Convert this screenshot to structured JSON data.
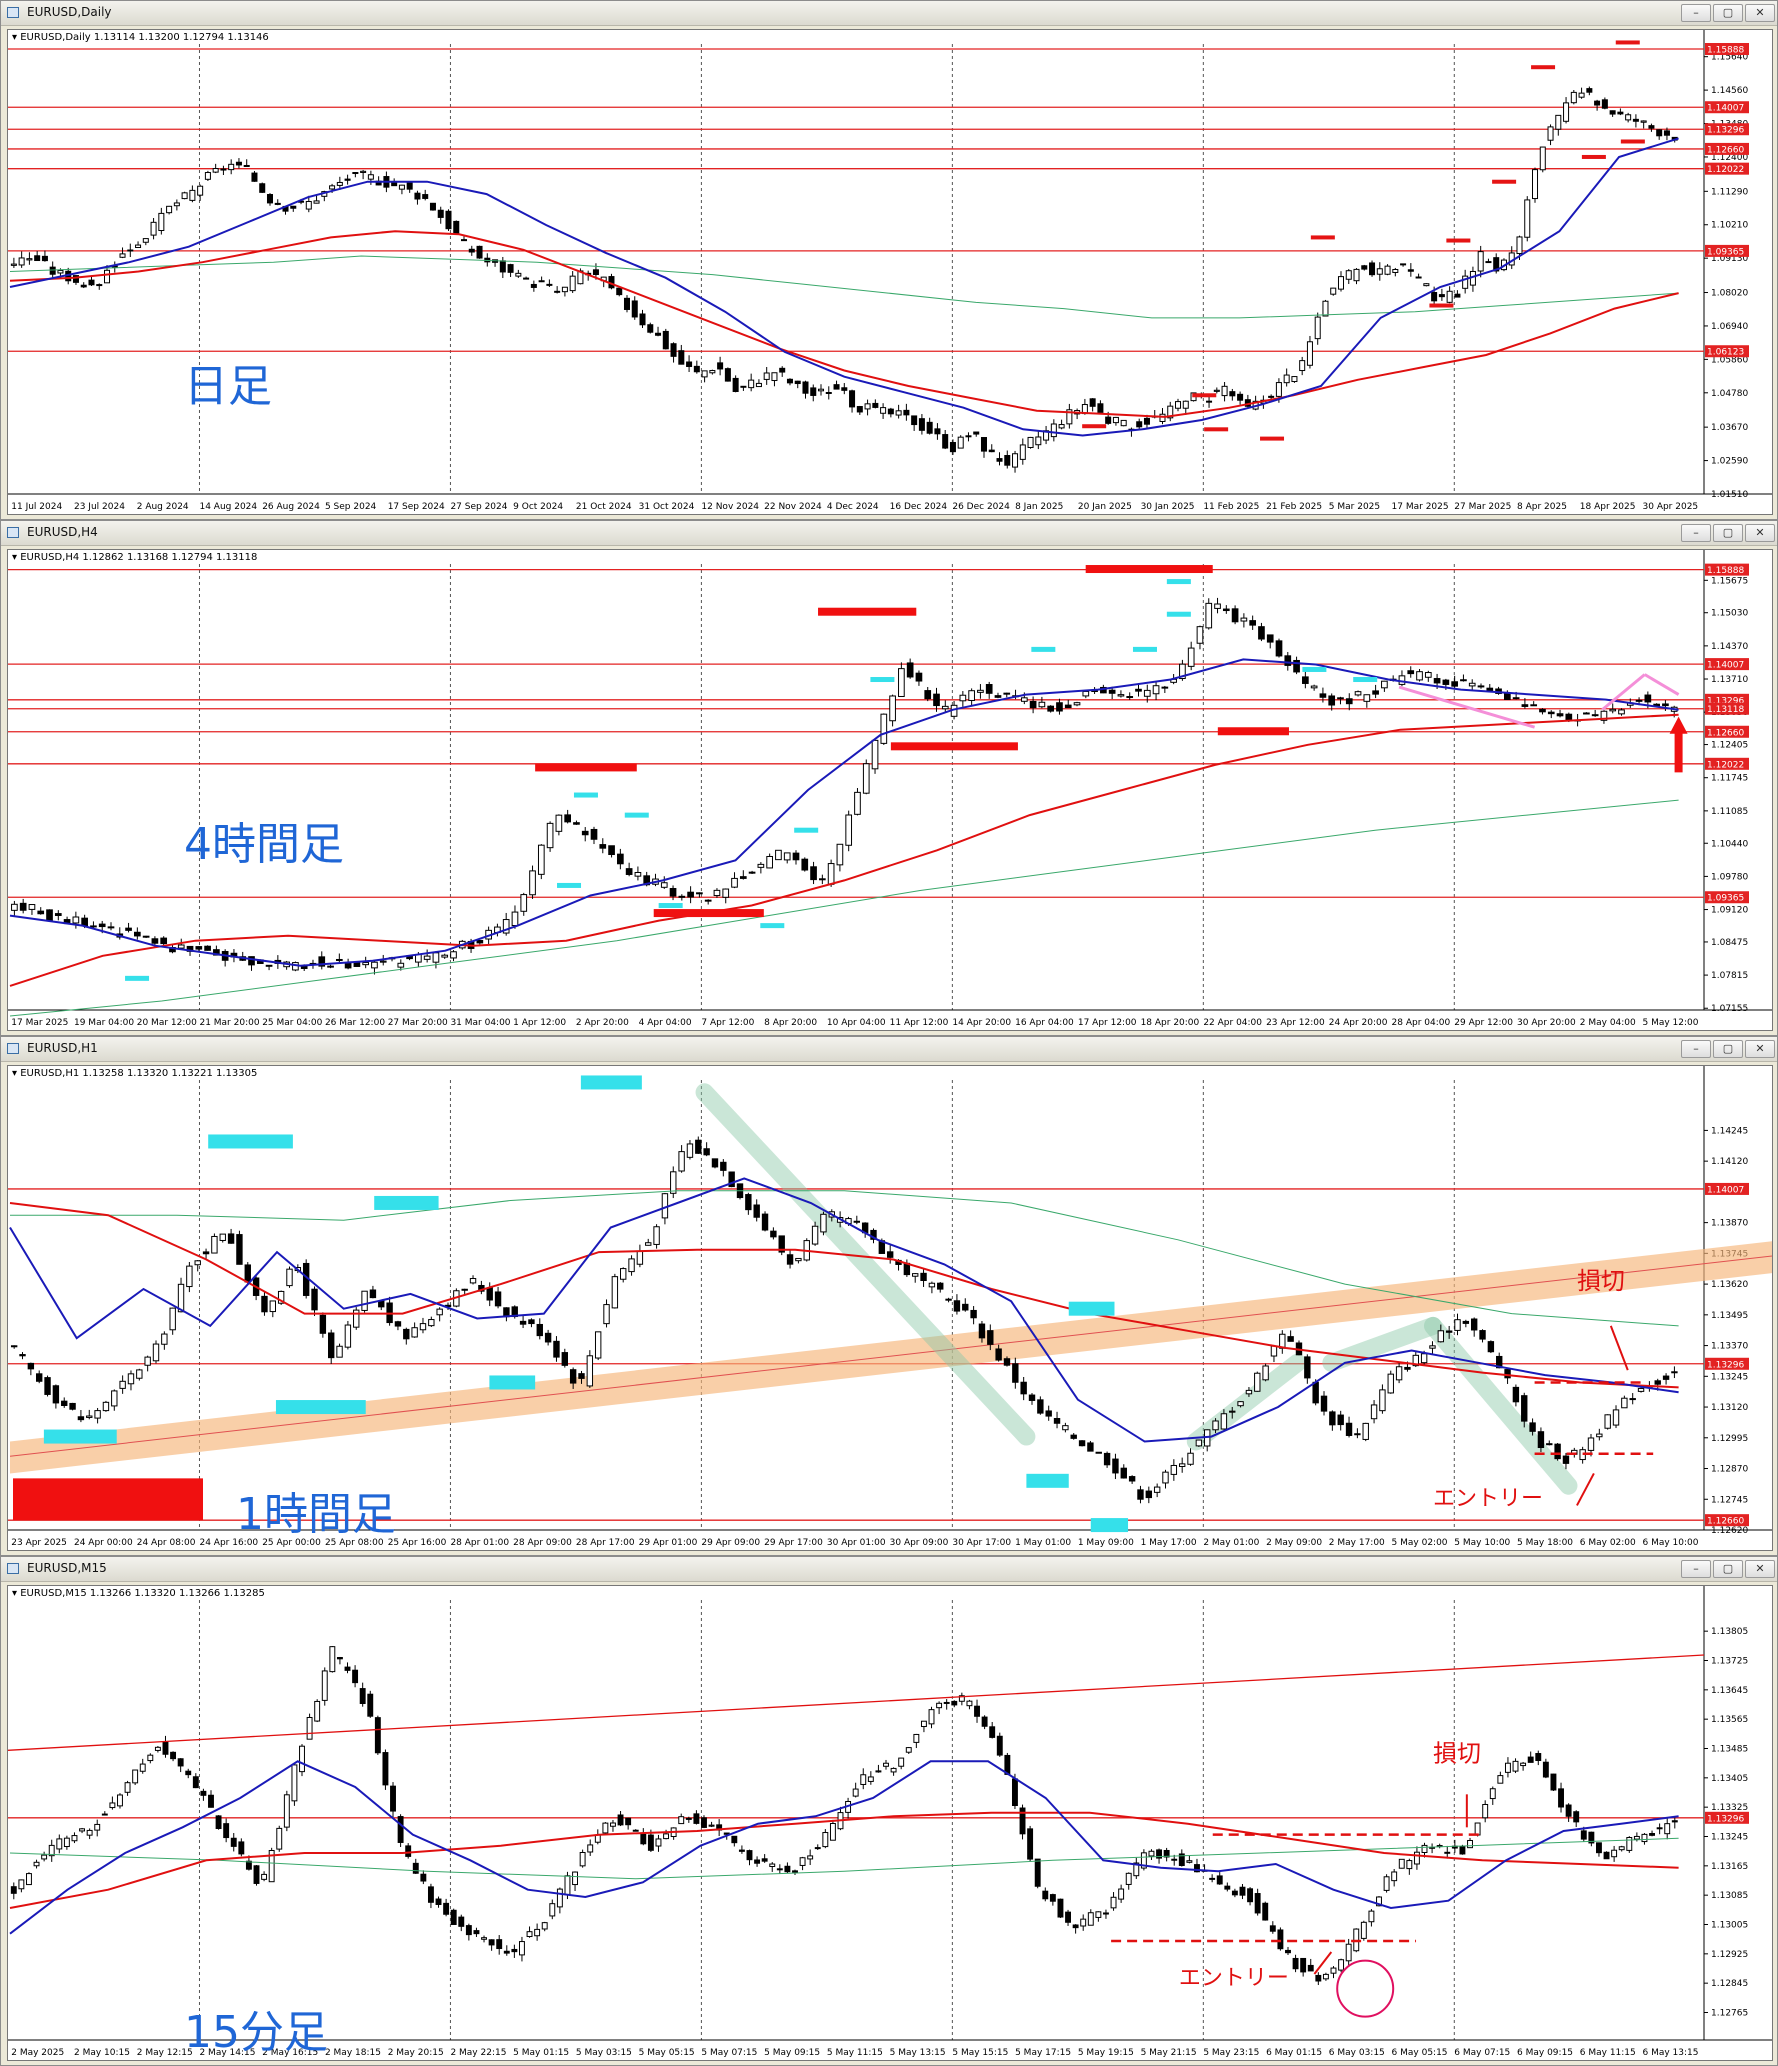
{
  "panels": [
    {
      "id": "daily",
      "title": "EURUSD,Daily",
      "info": "EURUSD,Daily  1.13114 1.13200 1.12794 1.13146",
      "label": "日足",
      "price_min": 1.0151,
      "price_max": 1.1605,
      "ticks": [
        "1.15640",
        "1.14560",
        "1.13480",
        "1.12400",
        "1.11290",
        "1.10210",
        "1.09130",
        "1.08020",
        "1.06940",
        "1.05860",
        "1.04780",
        "1.03670",
        "1.02590",
        "1.01510"
      ],
      "levels": [
        {
          "price": 1.15888,
          "text": "1.15888"
        },
        {
          "price": 1.14007,
          "text": "1.14007"
        },
        {
          "price": 1.13296,
          "text": "1.13296"
        },
        {
          "price": 1.1266,
          "text": "1.12660"
        },
        {
          "price": 1.12022,
          "text": "1.12022"
        },
        {
          "price": 1.09365,
          "text": "1.09365"
        },
        {
          "price": 1.06123,
          "text": "1.06123"
        }
      ],
      "dates": [
        "11 Jul 2024",
        "23 Jul 2024",
        "2 Aug 2024",
        "14 Aug 2024",
        "26 Aug 2024",
        "5 Sep 2024",
        "17 Sep 2024",
        "27 Sep 2024",
        "9 Oct 2024",
        "21 Oct 2024",
        "31 Oct 2024",
        "12 Nov 2024",
        "22 Nov 2024",
        "4 Dec 2024",
        "16 Dec 2024",
        "26 Dec 2024",
        "8 Jan 2025",
        "20 Jan 2025",
        "30 Jan 2025",
        "11 Feb 2025",
        "21 Feb 2025",
        "5 Mar 2025",
        "17 Mar 2025",
        "27 Mar 2025",
        "8 Apr 2025",
        "18 Apr 2025",
        "30 Apr 2025"
      ],
      "close_path": [
        1.09,
        1.092,
        1.087,
        1.085,
        1.081,
        1.089,
        1.095,
        1.1,
        1.108,
        1.112,
        1.118,
        1.122,
        1.119,
        1.111,
        1.108,
        1.109,
        1.113,
        1.117,
        1.118,
        1.116,
        1.114,
        1.111,
        1.104,
        1.096,
        1.091,
        1.088,
        1.084,
        1.083,
        1.08,
        1.087,
        1.085,
        1.078,
        1.072,
        1.066,
        1.058,
        1.054,
        1.057,
        1.048,
        1.052,
        1.055,
        1.05,
        1.047,
        1.05,
        1.044,
        1.042,
        1.041,
        1.039,
        1.035,
        1.03,
        1.035,
        1.028,
        1.025,
        1.032,
        1.036,
        1.041,
        1.045,
        1.039,
        1.037,
        1.039,
        1.041,
        1.047,
        1.046,
        1.05,
        1.042,
        1.046,
        1.052,
        1.057,
        1.078,
        1.084,
        1.089,
        1.086,
        1.09,
        1.083,
        1.077,
        1.081,
        1.092,
        1.088,
        1.096,
        1.125,
        1.136,
        1.145,
        1.142,
        1.138,
        1.136,
        1.133,
        1.131
      ],
      "ma_blue": [
        1.082,
        1.086,
        1.09,
        1.095,
        1.103,
        1.111,
        1.116,
        1.116,
        1.112,
        1.102,
        1.093,
        1.085,
        1.074,
        1.061,
        1.053,
        1.048,
        1.043,
        1.036,
        1.034,
        1.036,
        1.039,
        1.044,
        1.05,
        1.072,
        1.082,
        1.088,
        1.1,
        1.124,
        1.13
      ],
      "ma_red": [
        1.084,
        1.085,
        1.087,
        1.09,
        1.094,
        1.098,
        1.1,
        1.099,
        1.094,
        1.086,
        1.078,
        1.07,
        1.062,
        1.055,
        1.05,
        1.046,
        1.042,
        1.041,
        1.04,
        1.043,
        1.047,
        1.052,
        1.056,
        1.06,
        1.067,
        1.075,
        1.08
      ],
      "ma_green": [
        1.087,
        1.088,
        1.089,
        1.09,
        1.092,
        1.091,
        1.09,
        1.088,
        1.086,
        1.083,
        1.08,
        1.077,
        1.075,
        1.072,
        1.072,
        1.073,
        1.074,
        1.076,
        1.078,
        1.08
      ],
      "red_dashes": [
        [
          0.64,
          1.037
        ],
        [
          0.705,
          1.047
        ],
        [
          0.712,
          1.036
        ],
        [
          0.745,
          1.033
        ],
        [
          0.775,
          1.098
        ],
        [
          0.845,
          1.076
        ],
        [
          0.855,
          1.097
        ],
        [
          0.882,
          1.116
        ],
        [
          0.905,
          1.153
        ],
        [
          0.935,
          1.124
        ],
        [
          0.955,
          1.161
        ],
        [
          0.958,
          1.129
        ]
      ]
    },
    {
      "id": "h4",
      "title": "EURUSD,H4",
      "info": "EURUSD,H4  1.12862 1.13168 1.12794 1.13118",
      "label": "4時間足",
      "price_min": 1.0712,
      "price_max": 1.16,
      "ticks": [
        "1.15675",
        "1.15030",
        "1.14370",
        "1.13710",
        "1.13050",
        "1.12405",
        "1.11745",
        "1.11085",
        "1.10440",
        "1.09780",
        "1.09120",
        "1.08475",
        "1.07815",
        "1.07155"
      ],
      "levels": [
        {
          "price": 1.15888,
          "text": "1.15888"
        },
        {
          "price": 1.14007,
          "text": "1.14007"
        },
        {
          "price": 1.13296,
          "text": "1.13296"
        },
        {
          "price": 1.13118,
          "text": "1.13118"
        },
        {
          "price": 1.1266,
          "text": "1.12660"
        },
        {
          "price": 1.12022,
          "text": "1.12022"
        },
        {
          "price": 1.09365,
          "text": "1.09365"
        }
      ],
      "dates": [
        "17 Mar 2025",
        "19 Mar 04:00",
        "20 Mar 12:00",
        "21 Mar 20:00",
        "25 Mar 04:00",
        "26 Mar 12:00",
        "27 Mar 20:00",
        "31 Mar 04:00",
        "1 Apr 12:00",
        "2 Apr 20:00",
        "4 Apr 04:00",
        "7 Apr 12:00",
        "8 Apr 20:00",
        "10 Apr 04:00",
        "11 Apr 12:00",
        "14 Apr 20:00",
        "16 Apr 04:00",
        "17 Apr 12:00",
        "18 Apr 20:00",
        "22 Apr 04:00",
        "23 Apr 12:00",
        "24 Apr 20:00",
        "28 Apr 04:00",
        "29 Apr 12:00",
        "30 Apr 20:00",
        "2 May 04:00",
        "5 May 12:00"
      ],
      "close_path": [
        1.092,
        1.09,
        1.088,
        1.086,
        1.084,
        1.083,
        1.081,
        1.08,
        1.081,
        1.08,
        1.081,
        1.082,
        1.085,
        1.09,
        1.11,
        1.105,
        1.098,
        1.095,
        1.093,
        1.099,
        1.103,
        1.096,
        1.118,
        1.14,
        1.13,
        1.135,
        1.133,
        1.131,
        1.135,
        1.134,
        1.136,
        1.152,
        1.148,
        1.14,
        1.132,
        1.134,
        1.138,
        1.137,
        1.135,
        1.132,
        1.129,
        1.13,
        1.133,
        1.131
      ],
      "ma_blue": [
        1.09,
        1.088,
        1.084,
        1.082,
        1.08,
        1.081,
        1.083,
        1.088,
        1.094,
        1.097,
        1.101,
        1.115,
        1.126,
        1.131,
        1.134,
        1.135,
        1.137,
        1.141,
        1.14,
        1.137,
        1.135,
        1.134,
        1.133,
        1.131
      ],
      "ma_red": [
        1.076,
        1.082,
        1.085,
        1.086,
        1.085,
        1.084,
        1.085,
        1.089,
        1.092,
        1.097,
        1.103,
        1.11,
        1.115,
        1.12,
        1.124,
        1.127,
        1.128,
        1.129,
        1.13
      ],
      "ma_green": [
        1.07,
        1.073,
        1.077,
        1.081,
        1.085,
        1.09,
        1.095,
        1.099,
        1.103,
        1.107,
        1.11,
        1.113
      ],
      "red_bars": [
        [
          0.31,
          0.37,
          1.1195
        ],
        [
          0.38,
          0.445,
          1.0905
        ],
        [
          0.477,
          0.535,
          1.1505
        ],
        [
          0.52,
          0.595,
          1.1237
        ],
        [
          0.635,
          0.71,
          1.159
        ],
        [
          0.713,
          0.755,
          1.1267
        ]
      ],
      "cyan_marks": [
        [
          0.33,
          1.096
        ],
        [
          0.34,
          1.114
        ],
        [
          0.37,
          1.11
        ],
        [
          0.39,
          1.092
        ],
        [
          0.45,
          1.088
        ],
        [
          0.47,
          1.107
        ],
        [
          0.515,
          1.137
        ],
        [
          0.61,
          1.143
        ],
        [
          0.67,
          1.143
        ],
        [
          0.69,
          1.1565
        ],
        [
          0.69,
          1.15
        ],
        [
          0.77,
          1.139
        ],
        [
          0.8,
          1.137
        ],
        [
          0.075,
          1.0775
        ]
      ]
    },
    {
      "id": "h1",
      "title": "EURUSD,H1",
      "info": "EURUSD,H1  1.13258 1.13320 1.13221 1.13305",
      "label": "1時間足",
      "annotation_stop": "損切",
      "annotation_entry": "エントリー",
      "price_min": 1.1262,
      "price_max": 1.1445,
      "ticks": [
        "1.14245",
        "1.14120",
        "1.13870",
        "1.13745",
        "1.13620",
        "1.13495",
        "1.13370",
        "1.13245",
        "1.13120",
        "1.12995",
        "1.12870",
        "1.12745",
        "1.12620"
      ],
      "levels": [
        {
          "price": 1.14007,
          "text": "1.14007"
        },
        {
          "price": 1.13296,
          "text": "1.13296"
        },
        {
          "price": 1.1266,
          "text": "1.12660"
        }
      ],
      "dates": [
        "23 Apr 2025",
        "24 Apr 00:00",
        "24 Apr 08:00",
        "24 Apr 16:00",
        "25 Apr 00:00",
        "25 Apr 08:00",
        "25 Apr 16:00",
        "28 Apr 01:00",
        "28 Apr 09:00",
        "28 Apr 17:00",
        "29 Apr 01:00",
        "29 Apr 09:00",
        "29 Apr 17:00",
        "30 Apr 01:00",
        "30 Apr 09:00",
        "30 Apr 17:00",
        "1 May 01:00",
        "1 May 09:00",
        "1 May 17:00",
        "2 May 01:00",
        "2 May 09:00",
        "2 May 17:00",
        "5 May 02:00",
        "5 May 10:00",
        "5 May 18:00",
        "6 May 02:00",
        "6 May 10:00"
      ],
      "close_path": [
        1.1335,
        1.1318,
        1.1306,
        1.132,
        1.1335,
        1.137,
        1.1385,
        1.135,
        1.137,
        1.133,
        1.136,
        1.134,
        1.1352,
        1.1363,
        1.135,
        1.1342,
        1.132,
        1.1365,
        1.138,
        1.142,
        1.141,
        1.139,
        1.137,
        1.139,
        1.1385,
        1.137,
        1.136,
        1.135,
        1.133,
        1.131,
        1.13,
        1.129,
        1.1275,
        1.129,
        1.1305,
        1.132,
        1.1345,
        1.131,
        1.13,
        1.1325,
        1.1335,
        1.135,
        1.133,
        1.13,
        1.129,
        1.1305,
        1.132,
        1.1326
      ],
      "ma_blue": [
        1.1385,
        1.134,
        1.136,
        1.1345,
        1.1375,
        1.1352,
        1.1358,
        1.1348,
        1.135,
        1.1385,
        1.1395,
        1.1405,
        1.1395,
        1.138,
        1.137,
        1.1355,
        1.1315,
        1.1298,
        1.13,
        1.1312,
        1.133,
        1.1335,
        1.133,
        1.1325,
        1.1322,
        1.1318
      ],
      "ma_red": [
        1.1395,
        1.139,
        1.1372,
        1.135,
        1.135,
        1.1362,
        1.1375,
        1.1376,
        1.1376,
        1.1372,
        1.136,
        1.135,
        1.1343,
        1.1336,
        1.1331,
        1.1326,
        1.1322,
        1.132
      ],
      "ma_green": [
        1.139,
        1.139,
        1.1388,
        1.1396,
        1.14,
        1.14,
        1.1395,
        1.138,
        1.1362,
        1.135,
        1.1345
      ],
      "cyan_rects": [
        [
          0.02,
          0.063,
          1.13
        ],
        [
          0.117,
          0.167,
          1.142
        ],
        [
          0.157,
          0.21,
          1.1312
        ],
        [
          0.215,
          0.253,
          1.1395
        ],
        [
          0.283,
          0.31,
          1.1322
        ],
        [
          0.337,
          0.373,
          1.1444
        ],
        [
          0.625,
          0.652,
          1.1352
        ],
        [
          0.6,
          0.625,
          1.1282
        ],
        [
          0.638,
          0.66,
          1.1264
        ]
      ]
    },
    {
      "id": "m15",
      "title": "EURUSD,M15",
      "info": "EURUSD,M15  1.13266 1.13320 1.13266 1.13285",
      "label": "15分足",
      "annotation_stop": "損切",
      "annotation_entry": "エントリー",
      "price_min": 1.1269,
      "price_max": 1.1389,
      "ticks": [
        "1.13805",
        "1.13725",
        "1.13645",
        "1.13565",
        "1.13485",
        "1.13405",
        "1.13325",
        "1.13245",
        "1.13165",
        "1.13085",
        "1.13005",
        "1.12925",
        "1.12845",
        "1.12765"
      ],
      "levels": [
        {
          "price": 1.13296,
          "text": "1.13296"
        }
      ],
      "dates": [
        "2 May 2025",
        "2 May 10:15",
        "2 May 12:15",
        "2 May 14:15",
        "2 May 16:15",
        "2 May 18:15",
        "2 May 20:15",
        "2 May 22:15",
        "5 May 01:15",
        "5 May 03:15",
        "5 May 05:15",
        "5 May 07:15",
        "5 May 09:15",
        "5 May 11:15",
        "5 May 13:15",
        "5 May 15:15",
        "5 May 17:15",
        "5 May 19:15",
        "5 May 21:15",
        "5 May 23:15",
        "6 May 01:15",
        "6 May 03:15",
        "6 May 05:15",
        "6 May 07:15",
        "6 May 09:15",
        "6 May 11:15",
        "6 May 13:15"
      ],
      "close_path": [
        1.131,
        1.1322,
        1.1326,
        1.1335,
        1.135,
        1.134,
        1.1325,
        1.131,
        1.1345,
        1.1375,
        1.136,
        1.132,
        1.1305,
        1.1298,
        1.1292,
        1.1302,
        1.1318,
        1.133,
        1.1322,
        1.133,
        1.1325,
        1.1318,
        1.1315,
        1.1325,
        1.134,
        1.1345,
        1.136,
        1.1362,
        1.1345,
        1.131,
        1.13,
        1.1305,
        1.132,
        1.1318,
        1.1312,
        1.1308,
        1.1292,
        1.1284,
        1.1298,
        1.1315,
        1.1322,
        1.132,
        1.1342,
        1.1346,
        1.133,
        1.1318,
        1.1325,
        1.1328
      ],
      "ma_blue": [
        1.1298,
        1.131,
        1.132,
        1.1327,
        1.1335,
        1.1345,
        1.1338,
        1.1325,
        1.1318,
        1.131,
        1.1308,
        1.1312,
        1.1322,
        1.1328,
        1.133,
        1.1335,
        1.1345,
        1.1345,
        1.1335,
        1.1318,
        1.1316,
        1.1315,
        1.1317,
        1.131,
        1.1305,
        1.1307,
        1.1318,
        1.1326,
        1.1328,
        1.133
      ],
      "ma_red": [
        1.1305,
        1.131,
        1.1318,
        1.132,
        1.132,
        1.1322,
        1.1325,
        1.1326,
        1.1328,
        1.133,
        1.1331,
        1.1331,
        1.1328,
        1.1324,
        1.132,
        1.1318,
        1.1317,
        1.1316
      ],
      "ma_green": [
        1.132,
        1.1318,
        1.1315,
        1.1313,
        1.1315,
        1.1318,
        1.132,
        1.1322,
        1.1324
      ]
    }
  ]
}
